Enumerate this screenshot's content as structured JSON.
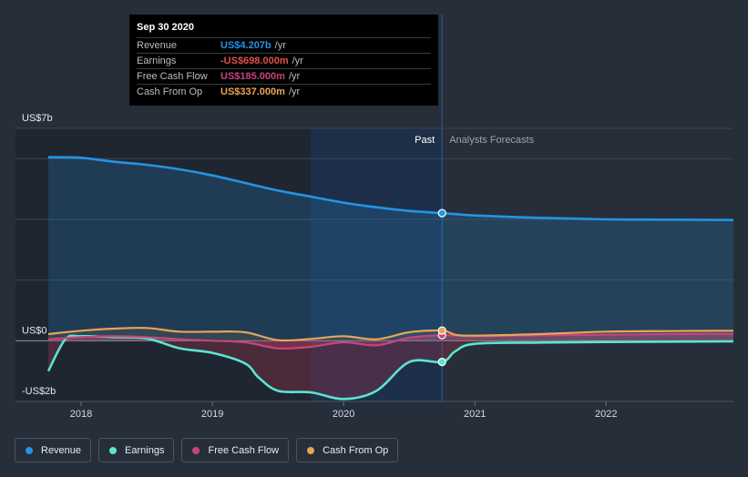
{
  "chart_data": {
    "type": "line",
    "ylim": [
      -2,
      7
    ],
    "y_labels": [
      {
        "value": 7,
        "text": "US$7b"
      },
      {
        "value": 0,
        "text": "US$0"
      },
      {
        "value": -2,
        "text": "-US$2b"
      }
    ],
    "x_range": [
      2017.5,
      2022.97
    ],
    "x_ticks": [
      {
        "value": 2018,
        "text": "2018"
      },
      {
        "value": 2019,
        "text": "2019"
      },
      {
        "value": 2020,
        "text": "2020"
      },
      {
        "value": 2021,
        "text": "2021"
      },
      {
        "value": 2022,
        "text": "2022"
      }
    ],
    "past_label": "Past",
    "forecast_label": "Analysts Forecasts",
    "divider_x": 2020.75,
    "highlight_start_x": 2019.75,
    "series": [
      {
        "name": "Revenue",
        "color": "#2394e3",
        "x": [
          2017.75,
          2018.0,
          2018.25,
          2018.5,
          2018.75,
          2019.0,
          2019.25,
          2019.5,
          2019.75,
          2020.0,
          2020.25,
          2020.5,
          2020.75,
          2021.0,
          2021.5,
          2022.0,
          2022.5,
          2022.97
        ],
        "values": [
          6.05,
          6.03,
          5.9,
          5.8,
          5.65,
          5.45,
          5.2,
          4.95,
          4.75,
          4.55,
          4.4,
          4.28,
          4.207,
          4.13,
          4.05,
          4.0,
          3.99,
          3.98
        ]
      },
      {
        "name": "Earnings",
        "color": "#5ae5cf",
        "x": [
          2017.75,
          2017.88,
          2018.0,
          2018.25,
          2018.5,
          2018.75,
          2019.0,
          2019.25,
          2019.35,
          2019.5,
          2019.75,
          2020.0,
          2020.25,
          2020.5,
          2020.75,
          2020.85,
          2021.0,
          2021.5,
          2022.0,
          2022.5,
          2022.97
        ],
        "values": [
          -1.0,
          0.05,
          0.15,
          0.12,
          0.08,
          -0.25,
          -0.4,
          -0.75,
          -1.2,
          -1.65,
          -1.7,
          -1.92,
          -1.65,
          -0.7,
          -0.698,
          -0.35,
          -0.1,
          -0.06,
          -0.04,
          -0.03,
          -0.02
        ]
      },
      {
        "name": "Free Cash Flow",
        "color": "#c7447d",
        "x": [
          2017.75,
          2018.0,
          2018.25,
          2018.5,
          2018.75,
          2019.0,
          2019.25,
          2019.5,
          2019.75,
          2020.0,
          2020.25,
          2020.5,
          2020.75,
          2021.0,
          2021.5,
          2022.0,
          2022.5,
          2022.97
        ],
        "values": [
          0.05,
          0.12,
          0.15,
          0.12,
          0.05,
          0.0,
          -0.05,
          -0.25,
          -0.2,
          -0.05,
          -0.15,
          0.1,
          0.185,
          0.15,
          0.18,
          0.2,
          0.22,
          0.23
        ]
      },
      {
        "name": "Cash From Op",
        "color": "#e9a458",
        "x": [
          2017.75,
          2018.0,
          2018.25,
          2018.5,
          2018.75,
          2019.0,
          2019.25,
          2019.5,
          2019.75,
          2020.0,
          2020.25,
          2020.5,
          2020.75,
          2020.85,
          2021.0,
          2021.5,
          2022.0,
          2022.5,
          2022.97
        ],
        "values": [
          0.22,
          0.33,
          0.4,
          0.42,
          0.3,
          0.3,
          0.28,
          0.02,
          0.06,
          0.15,
          0.05,
          0.28,
          0.337,
          0.2,
          0.17,
          0.22,
          0.3,
          0.32,
          0.33
        ]
      }
    ],
    "highlight_x": 2020.75
  },
  "tooltip": {
    "date": "Sep 30 2020",
    "rows": [
      {
        "label": "Revenue",
        "value": "US$4.207b",
        "unit": "/yr",
        "color": "#2394e3"
      },
      {
        "label": "Earnings",
        "value": "-US$698.000m",
        "unit": "/yr",
        "color": "#e05249"
      },
      {
        "label": "Free Cash Flow",
        "value": "US$185.000m",
        "unit": "/yr",
        "color": "#c7447d"
      },
      {
        "label": "Cash From Op",
        "value": "US$337.000m",
        "unit": "/yr",
        "color": "#e9a458"
      }
    ]
  },
  "legend": [
    {
      "label": "Revenue",
      "color": "#2394e3"
    },
    {
      "label": "Earnings",
      "color": "#5ae5cf"
    },
    {
      "label": "Free Cash Flow",
      "color": "#c7447d"
    },
    {
      "label": "Cash From Op",
      "color": "#e9a458"
    }
  ]
}
